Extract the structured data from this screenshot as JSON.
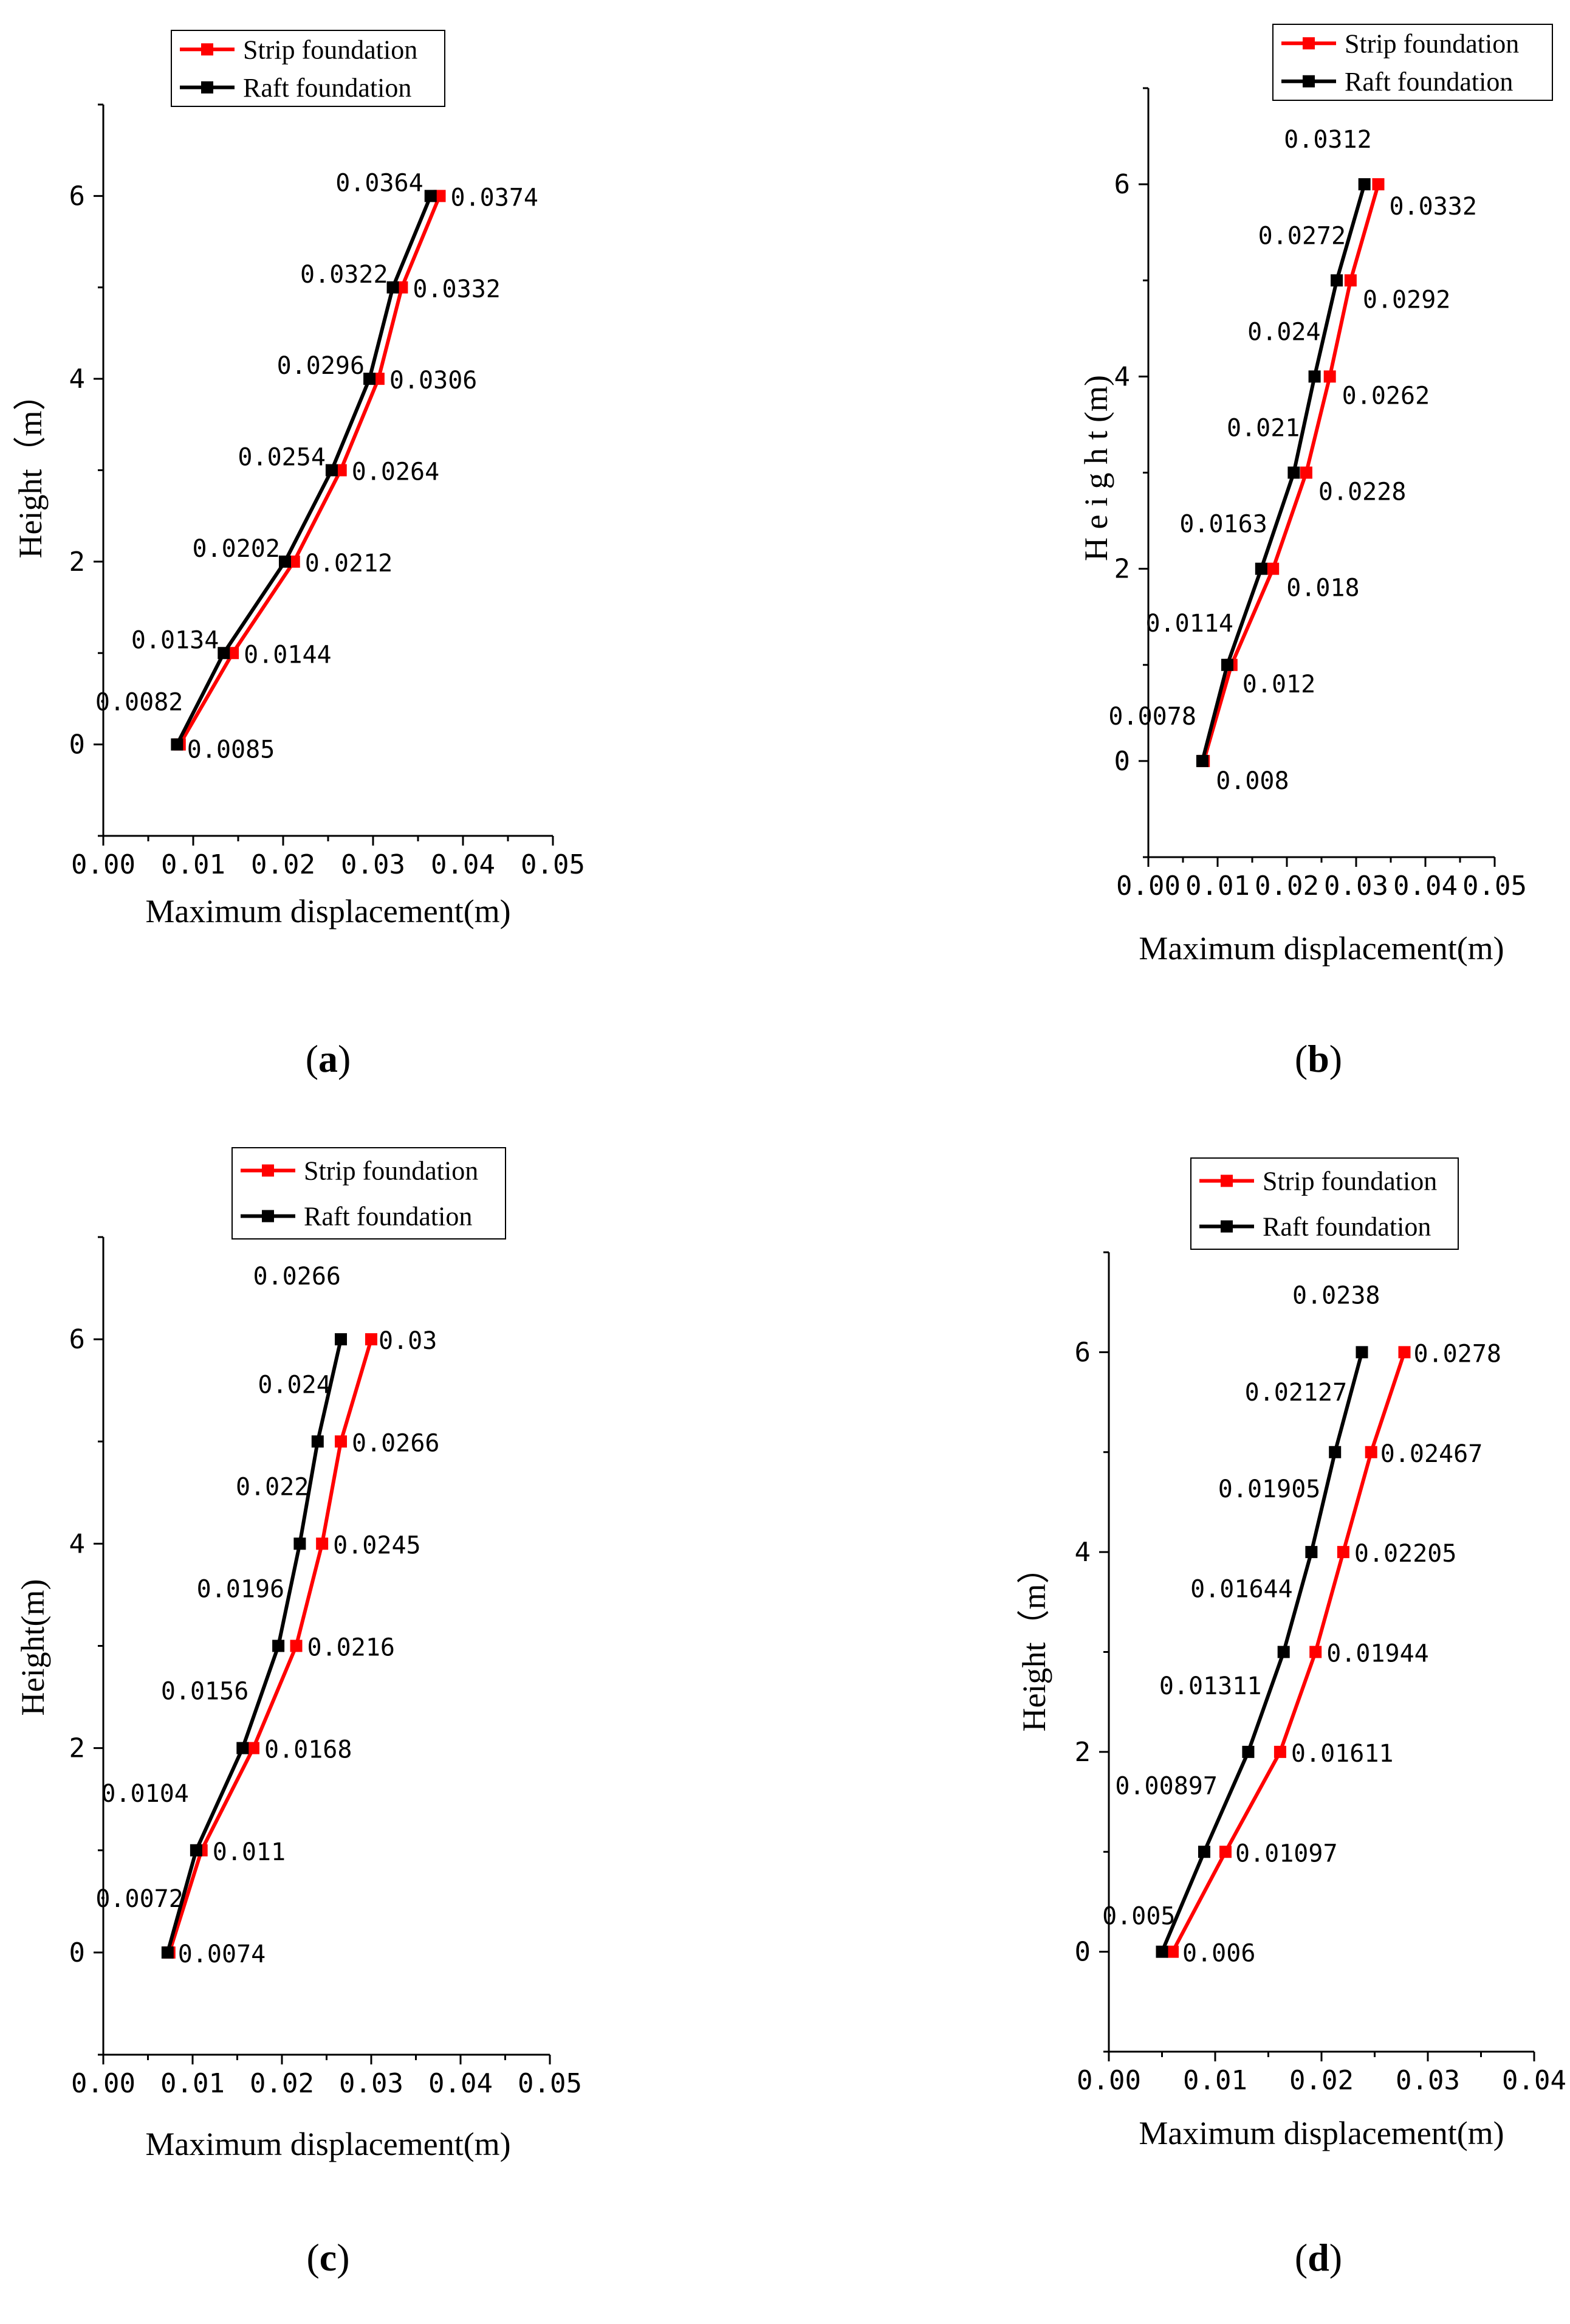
{
  "chart_data": [
    {
      "type": "line",
      "panel_label": "a",
      "xlabel": "Maximum displacement(m)",
      "ylabel": "Height（m）",
      "xlim": [
        0,
        0.05
      ],
      "ylim": [
        -1,
        7
      ],
      "xticks": [
        "0.00",
        "0.01",
        "0.02",
        "0.03",
        "0.04",
        "0.05"
      ],
      "yticks": [
        "0",
        "2",
        "4",
        "6"
      ],
      "legend_position": "top-center",
      "legend": [
        "Strip foundation",
        "Raft foundation"
      ],
      "series": [
        {
          "name": "Strip foundation",
          "color": "#ff0000",
          "y": [
            0,
            1,
            2,
            3,
            4,
            5,
            6
          ],
          "x": [
            0.0085,
            0.0144,
            0.0212,
            0.0264,
            0.0306,
            0.0332,
            0.0374
          ],
          "labels": [
            "0.0085",
            "0.0144",
            "0.0212",
            "0.0264",
            "0.0306",
            "0.0332",
            "0.0374"
          ]
        },
        {
          "name": "Raft foundation",
          "color": "#000000",
          "y": [
            0,
            1,
            2,
            3,
            4,
            5,
            6
          ],
          "x": [
            0.0082,
            0.0134,
            0.0202,
            0.0254,
            0.0296,
            0.0322,
            0.0364
          ],
          "labels": [
            "0.0082",
            "0.0134",
            "0.0202",
            "0.0254",
            "0.0296",
            "0.0322",
            "0.0364"
          ]
        }
      ]
    },
    {
      "type": "line",
      "panel_label": "b",
      "xlabel": "Maximum displacement(m)",
      "ylabel": "H e i g h t (m)",
      "xlim": [
        0,
        0.05
      ],
      "ylim": [
        -1,
        7
      ],
      "xticks": [
        "0.00",
        "0.01",
        "0.02",
        "0.03",
        "0.04",
        "0.05"
      ],
      "yticks": [
        "0",
        "2",
        "4",
        "6"
      ],
      "legend_position": "top-right",
      "legend": [
        "Strip foundation",
        "Raft foundation"
      ],
      "series": [
        {
          "name": "Strip foundation",
          "color": "#ff0000",
          "y": [
            0,
            1,
            2,
            3,
            4,
            5,
            6
          ],
          "x": [
            0.008,
            0.012,
            0.018,
            0.0228,
            0.0262,
            0.0292,
            0.0332
          ],
          "labels": [
            "0.008",
            "0.012",
            "0.018",
            "0.0228",
            "0.0262",
            "0.0292",
            "0.0332"
          ]
        },
        {
          "name": "Raft foundation",
          "color": "#000000",
          "y": [
            0,
            1,
            2,
            3,
            4,
            5,
            6
          ],
          "x": [
            0.0078,
            0.0114,
            0.0163,
            0.021,
            0.024,
            0.0272,
            0.0312
          ],
          "labels": [
            "0.0078",
            "0.0114",
            "0.0163",
            "0.021",
            "0.024",
            "0.0272",
            "0.0312"
          ]
        }
      ]
    },
    {
      "type": "line",
      "panel_label": "c",
      "xlabel": "Maximum displacement(m)",
      "ylabel": "Height(m)",
      "xlim": [
        0,
        0.05
      ],
      "ylim": [
        -1,
        7
      ],
      "xticks": [
        "0.00",
        "0.01",
        "0.02",
        "0.03",
        "0.04",
        "0.05"
      ],
      "yticks": [
        "0",
        "2",
        "4",
        "6"
      ],
      "legend_position": "top-right",
      "legend": [
        "Strip foundation",
        "Raft foundation"
      ],
      "series": [
        {
          "name": "Strip foundation",
          "color": "#ff0000",
          "y": [
            0,
            1,
            2,
            3,
            4,
            5,
            6
          ],
          "x": [
            0.0074,
            0.011,
            0.0168,
            0.0216,
            0.0245,
            0.0266,
            0.03
          ],
          "labels": [
            "0.0074",
            "0.011",
            "0.0168",
            "0.0216",
            "0.0245",
            "0.0266",
            "0.03"
          ]
        },
        {
          "name": "Raft foundation",
          "color": "#000000",
          "y": [
            0,
            1,
            2,
            3,
            4,
            5,
            6
          ],
          "x": [
            0.0072,
            0.0104,
            0.0156,
            0.0196,
            0.022,
            0.024,
            0.0266
          ],
          "labels": [
            "0.0072",
            "0.0104",
            "0.0156",
            "0.0196",
            "0.022",
            "0.024",
            "0.0266"
          ]
        }
      ]
    },
    {
      "type": "line",
      "panel_label": "d",
      "xlabel": "Maximum displacement(m)",
      "ylabel": "Height（m）",
      "xlim": [
        0,
        0.04
      ],
      "ylim": [
        -1,
        7
      ],
      "xticks": [
        "0.00",
        "0.01",
        "0.02",
        "0.03",
        "0.04"
      ],
      "yticks": [
        "0",
        "2",
        "4",
        "6"
      ],
      "legend_position": "top-center",
      "legend": [
        "Strip foundation",
        "Raft foundation"
      ],
      "series": [
        {
          "name": "Strip foundation",
          "color": "#ff0000",
          "y": [
            0,
            1,
            2,
            3,
            4,
            5,
            6
          ],
          "x": [
            0.006,
            0.01097,
            0.01611,
            0.01944,
            0.02205,
            0.02467,
            0.0278
          ],
          "labels": [
            "0.006",
            "0.01097",
            "0.01611",
            "0.01944",
            "0.02205",
            "0.02467",
            "0.0278"
          ]
        },
        {
          "name": "Raft foundation",
          "color": "#000000",
          "y": [
            0,
            1,
            2,
            3,
            4,
            5,
            6
          ],
          "x": [
            0.005,
            0.00897,
            0.01311,
            0.01644,
            0.01905,
            0.02127,
            0.0238
          ],
          "labels": [
            "0.005",
            "0.00897",
            "0.01311",
            "0.01644",
            "0.01905",
            "0.02127",
            "0.0238"
          ]
        }
      ]
    }
  ]
}
